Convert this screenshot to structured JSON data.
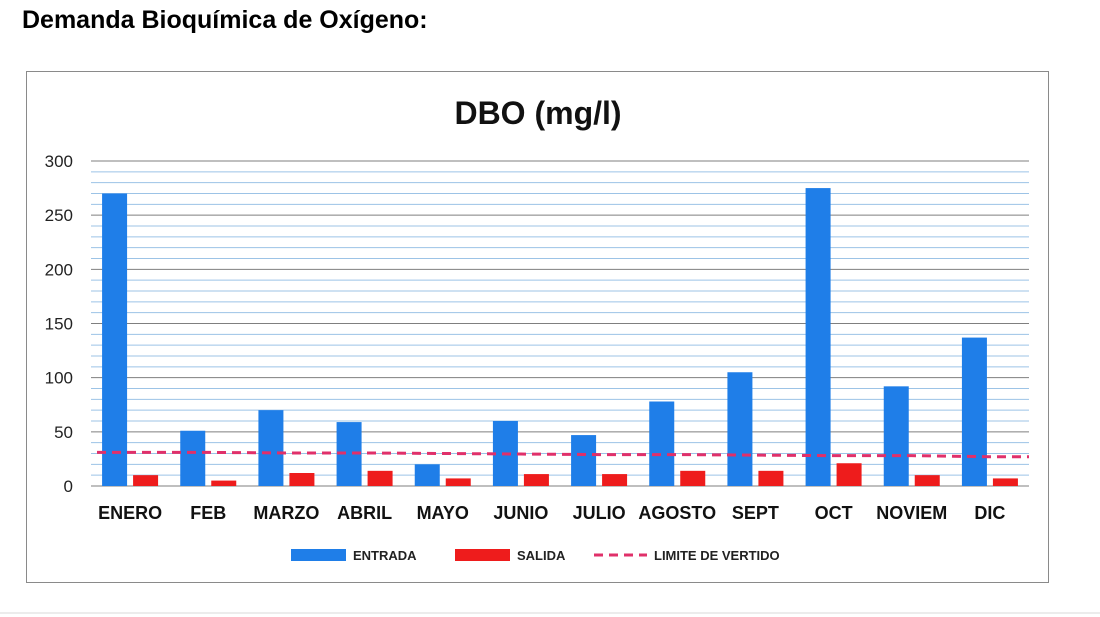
{
  "page": {
    "heading": "Demanda Bioquímica de Oxígeno:"
  },
  "colors": {
    "entrada": "#1f7ee8",
    "salida": "#ee1c1c",
    "limite": "#e0306a",
    "grid_major": "#7f7f7f",
    "grid_minor": "#9cc3e6"
  },
  "chart_data": {
    "type": "bar",
    "title": "DBO (mg/l)",
    "categories": [
      "ENERO",
      "FEB",
      "MARZO",
      "ABRIL",
      "MAYO",
      "JUNIO",
      "JULIO",
      "AGOSTO",
      "SEPT",
      "OCT",
      "NOVIEM",
      "DIC"
    ],
    "series": [
      {
        "name": "ENTRADA",
        "kind": "bar",
        "values": [
          270,
          51,
          70,
          59,
          20,
          60,
          47,
          78,
          105,
          275,
          92,
          137
        ]
      },
      {
        "name": "SALIDA",
        "kind": "bar",
        "values": [
          10,
          5,
          12,
          14,
          7,
          11,
          11,
          14,
          14,
          21,
          10,
          7
        ]
      },
      {
        "name": "LIMITE DE VERTIDO",
        "kind": "dashed-line",
        "values": [
          31,
          31,
          30.5,
          30.5,
          30,
          29.5,
          29,
          29,
          28.5,
          28,
          28,
          27
        ]
      }
    ],
    "ylim": [
      0,
      300
    ],
    "yticks": [
      0,
      50,
      100,
      150,
      200,
      250,
      300
    ],
    "minor_grid_step": 10,
    "grid": true,
    "legend_position": "bottom"
  }
}
